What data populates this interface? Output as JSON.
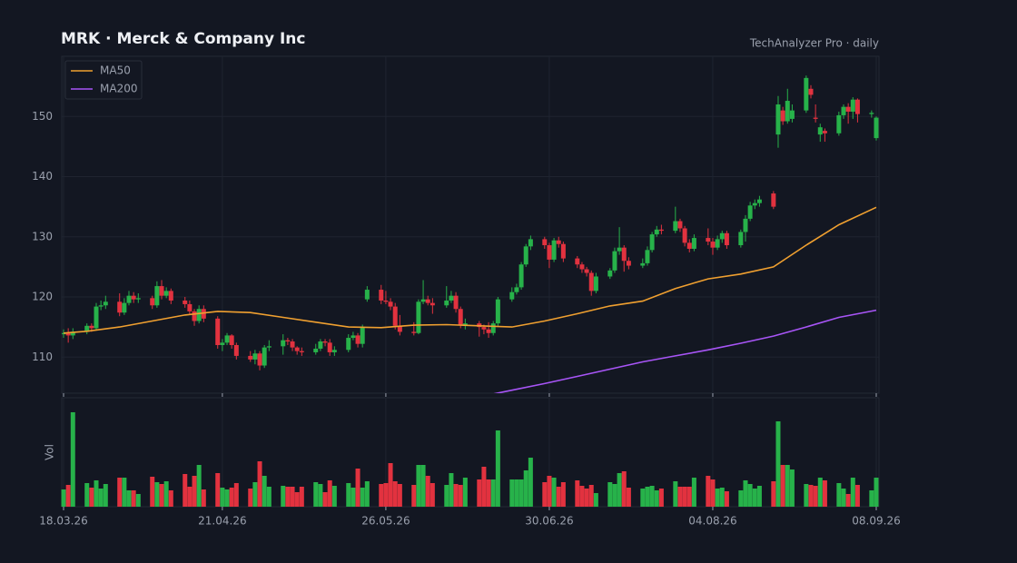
{
  "chart_data": {
    "type": "candlestick",
    "title": "MRK  ·  Merck & Company Inc",
    "subtitle": "TechAnalyzer Pro · daily",
    "volume_label": "Vol",
    "x": [
      "2026-03-18",
      "2026-03-19",
      "2026-03-20",
      "2026-03-23",
      "2026-03-24",
      "2026-03-25",
      "2026-03-26",
      "2026-03-27",
      "2026-03-30",
      "2026-03-31",
      "2026-04-01",
      "2026-04-02",
      "2026-04-03",
      "2026-04-06",
      "2026-04-07",
      "2026-04-08",
      "2026-04-09",
      "2026-04-10",
      "2026-04-13",
      "2026-04-14",
      "2026-04-15",
      "2026-04-16",
      "2026-04-17",
      "2026-04-20",
      "2026-04-21",
      "2026-04-22",
      "2026-04-23",
      "2026-04-24",
      "2026-04-27",
      "2026-04-28",
      "2026-04-29",
      "2026-04-30",
      "2026-05-01",
      "2026-05-04",
      "2026-05-05",
      "2026-05-06",
      "2026-05-07",
      "2026-05-08",
      "2026-05-11",
      "2026-05-12",
      "2026-05-13",
      "2026-05-14",
      "2026-05-15",
      "2026-05-18",
      "2026-05-19",
      "2026-05-20",
      "2026-05-21",
      "2026-05-22",
      "2026-05-25",
      "2026-05-26",
      "2026-05-27",
      "2026-05-28",
      "2026-05-29",
      "2026-06-01",
      "2026-06-02",
      "2026-06-03",
      "2026-06-04",
      "2026-06-05",
      "2026-06-08",
      "2026-06-09",
      "2026-06-10",
      "2026-06-11",
      "2026-06-12",
      "2026-06-15",
      "2026-06-16",
      "2026-06-17",
      "2026-06-18",
      "2026-06-19",
      "2026-06-22",
      "2026-06-23",
      "2026-06-24",
      "2026-06-25",
      "2026-06-26",
      "2026-06-29",
      "2026-06-30",
      "2026-07-01",
      "2026-07-02",
      "2026-07-03",
      "2026-07-06",
      "2026-07-07",
      "2026-07-08",
      "2026-07-09",
      "2026-07-10",
      "2026-07-13",
      "2026-07-14",
      "2026-07-15",
      "2026-07-16",
      "2026-07-17",
      "2026-07-20",
      "2026-07-21",
      "2026-07-22",
      "2026-07-23",
      "2026-07-24",
      "2026-07-27",
      "2026-07-28",
      "2026-07-29",
      "2026-07-30",
      "2026-07-31",
      "2026-08-03",
      "2026-08-04",
      "2026-08-05",
      "2026-08-06",
      "2026-08-07",
      "2026-08-10",
      "2026-08-11",
      "2026-08-12",
      "2026-08-13",
      "2026-08-14",
      "2026-08-17",
      "2026-08-18",
      "2026-08-19",
      "2026-08-20",
      "2026-08-21",
      "2026-08-24",
      "2026-08-25",
      "2026-08-26",
      "2026-08-27",
      "2026-08-28",
      "2026-08-31",
      "2026-09-01",
      "2026-09-02",
      "2026-09-03",
      "2026-09-04",
      "2026-09-07",
      "2026-09-08"
    ],
    "open": [
      113.8,
      114.0,
      113.6,
      114.2,
      115.2,
      114.8,
      118.4,
      118.6,
      119.2,
      117.4,
      119.0,
      120.2,
      119.6,
      119.8,
      118.6,
      121.8,
      120.2,
      121.0,
      119.4,
      118.8,
      117.6,
      116.0,
      118.0,
      116.4,
      112.0,
      112.4,
      113.6,
      112.0,
      110.2,
      109.6,
      110.6,
      108.6,
      111.6,
      111.8,
      112.8,
      112.6,
      111.6,
      111.0,
      110.8,
      111.4,
      112.6,
      112.4,
      110.8,
      111.2,
      113.2,
      113.6,
      112.2,
      119.6,
      121.2,
      119.4,
      119.2,
      118.4,
      115.2,
      114.2,
      114.0,
      119.2,
      119.6,
      119.0,
      118.6,
      119.4,
      120.2,
      118.0,
      115.4,
      115.6,
      115.0,
      114.6,
      114.0,
      115.6,
      119.6,
      120.8,
      121.6,
      125.4,
      128.4,
      129.6,
      128.6,
      126.2,
      129.4,
      128.8,
      126.4,
      125.4,
      124.6,
      124.0,
      121.0,
      123.4,
      124.4,
      127.6,
      128.2,
      126.0,
      125.2,
      125.6,
      127.8,
      130.4,
      131.2,
      131.0,
      132.6,
      131.4,
      129.0,
      128.0,
      129.8,
      129.2,
      128.2,
      129.6,
      130.6,
      128.6,
      130.8,
      133.0,
      135.2,
      135.6,
      137.2,
      147.0,
      151.0,
      149.2,
      149.6,
      151.0,
      154.6,
      149.8,
      147.0,
      147.6,
      147.2,
      150.2,
      151.6,
      150.8,
      152.8,
      150.4,
      146.4
    ],
    "high": [
      114.6,
      114.8,
      114.8,
      115.6,
      115.6,
      119.0,
      119.4,
      120.2,
      120.6,
      119.8,
      121.0,
      120.8,
      120.6,
      120.2,
      122.6,
      122.8,
      121.6,
      121.4,
      120.0,
      119.4,
      118.0,
      118.6,
      118.6,
      116.8,
      113.0,
      114.0,
      113.8,
      112.4,
      111.0,
      111.2,
      111.0,
      112.0,
      112.8,
      113.8,
      113.2,
      113.0,
      111.8,
      111.6,
      112.2,
      113.0,
      113.0,
      113.0,
      111.8,
      113.8,
      114.2,
      114.0,
      115.4,
      121.8,
      122.0,
      121.0,
      119.8,
      119.0,
      117.0,
      115.8,
      119.6,
      122.8,
      120.2,
      119.8,
      121.8,
      121.0,
      120.8,
      118.4,
      116.4,
      116.0,
      115.4,
      115.8,
      116.0,
      120.0,
      121.6,
      122.2,
      125.8,
      128.8,
      130.2,
      130.0,
      129.0,
      129.8,
      130.0,
      129.2,
      126.8,
      125.8,
      125.0,
      124.4,
      124.0,
      124.8,
      128.2,
      131.6,
      128.6,
      126.6,
      126.4,
      128.4,
      130.8,
      131.8,
      132.0,
      135.0,
      133.0,
      131.8,
      129.6,
      130.4,
      131.4,
      129.8,
      130.2,
      131.0,
      131.0,
      131.2,
      133.6,
      135.8,
      136.2,
      136.8,
      137.6,
      153.4,
      151.6,
      154.6,
      152.0,
      156.8,
      155.2,
      152.0,
      148.8,
      148.0,
      150.8,
      152.0,
      152.2,
      153.2,
      153.0,
      151.0,
      150.0
    ],
    "low": [
      113.2,
      112.4,
      113.0,
      113.8,
      114.2,
      114.4,
      117.8,
      118.0,
      116.8,
      117.0,
      118.6,
      119.0,
      119.0,
      118.0,
      118.2,
      119.6,
      119.8,
      118.8,
      118.2,
      117.0,
      115.2,
      115.6,
      115.8,
      111.4,
      111.0,
      112.0,
      111.4,
      109.6,
      109.2,
      108.8,
      107.8,
      108.2,
      111.0,
      110.4,
      112.0,
      111.0,
      110.4,
      110.2,
      110.4,
      111.0,
      111.8,
      110.2,
      110.2,
      110.8,
      112.8,
      111.6,
      111.6,
      119.2,
      118.8,
      118.8,
      117.8,
      114.6,
      113.6,
      113.6,
      113.8,
      118.8,
      118.6,
      117.2,
      118.2,
      119.0,
      117.4,
      114.8,
      114.6,
      113.4,
      113.8,
      113.2,
      113.6,
      115.2,
      119.2,
      120.4,
      121.2,
      125.0,
      127.8,
      128.0,
      124.8,
      125.8,
      128.2,
      125.8,
      124.8,
      124.0,
      123.4,
      120.2,
      120.6,
      123.0,
      124.0,
      127.0,
      124.2,
      124.6,
      124.8,
      125.2,
      127.4,
      130.0,
      130.4,
      130.6,
      130.8,
      128.4,
      127.4,
      127.6,
      128.6,
      127.0,
      127.8,
      129.0,
      128.0,
      128.2,
      129.2,
      132.6,
      134.6,
      135.0,
      134.6,
      144.8,
      148.6,
      148.8,
      149.0,
      150.6,
      153.0,
      149.0,
      145.8,
      145.8,
      146.8,
      149.6,
      148.8,
      149.6,
      149.0,
      149.8,
      146.0
    ],
    "close": [
      114.0,
      113.6,
      114.2,
      115.2,
      114.8,
      118.4,
      118.6,
      119.2,
      117.4,
      119.0,
      120.2,
      119.6,
      119.8,
      118.6,
      121.8,
      120.2,
      121.0,
      119.4,
      118.8,
      117.6,
      116.0,
      118.0,
      116.4,
      112.0,
      112.4,
      113.6,
      112.0,
      110.2,
      109.6,
      110.6,
      108.6,
      111.6,
      111.8,
      112.8,
      112.6,
      111.6,
      111.0,
      110.8,
      111.4,
      112.6,
      112.4,
      110.8,
      111.2,
      113.2,
      113.6,
      112.2,
      115.0,
      121.2,
      119.4,
      119.2,
      118.4,
      115.2,
      114.2,
      114.0,
      119.2,
      119.6,
      119.0,
      118.6,
      119.4,
      120.2,
      118.0,
      115.4,
      115.6,
      115.0,
      114.6,
      114.0,
      115.6,
      119.6,
      120.8,
      121.6,
      125.4,
      128.4,
      129.6,
      128.6,
      126.2,
      129.4,
      128.8,
      126.4,
      125.4,
      124.6,
      124.0,
      121.0,
      123.4,
      124.4,
      127.6,
      128.2,
      126.0,
      125.2,
      125.6,
      127.8,
      130.4,
      131.2,
      131.0,
      132.6,
      131.4,
      129.0,
      128.0,
      129.8,
      129.2,
      128.2,
      129.6,
      130.6,
      128.6,
      130.8,
      133.0,
      135.2,
      135.6,
      136.2,
      135.0,
      152.0,
      149.2,
      152.6,
      151.0,
      156.4,
      153.6,
      149.6,
      148.2,
      147.2,
      150.2,
      151.6,
      150.8,
      152.8,
      150.4,
      150.6,
      149.8
    ],
    "volume": [
      1.9,
      2.4,
      10.4,
      2.6,
      2.1,
      2.9,
      2.0,
      2.5,
      3.2,
      3.2,
      1.8,
      1.8,
      1.4,
      3.3,
      2.7,
      2.5,
      2.8,
      1.8,
      3.6,
      2.2,
      3.4,
      4.6,
      1.9,
      3.7,
      2.1,
      1.9,
      2.1,
      2.6,
      2.0,
      2.7,
      5.0,
      3.4,
      2.2,
      2.3,
      2.2,
      2.2,
      1.6,
      2.2,
      2.7,
      2.5,
      1.6,
      2.9,
      2.3,
      2.6,
      2.1,
      4.2,
      2.1,
      2.8,
      2.5,
      2.6,
      4.8,
      2.8,
      2.5,
      2.4,
      4.6,
      4.6,
      3.4,
      2.6,
      2.4,
      3.7,
      2.5,
      2.4,
      3.2,
      3.0,
      4.4,
      3.0,
      3.0,
      8.4,
      3.0,
      3.0,
      3.0,
      4.0,
      5.4,
      2.7,
      3.4,
      3.2,
      2.2,
      2.7,
      2.9,
      2.3,
      2.0,
      2.4,
      1.5,
      2.7,
      2.5,
      3.7,
      3.9,
      2.1,
      2.0,
      2.2,
      2.3,
      1.8,
      2.0,
      2.8,
      2.2,
      2.2,
      2.2,
      3.2,
      3.4,
      3.0,
      2.0,
      2.1,
      1.7,
      1.8,
      2.9,
      2.5,
      2.0,
      2.3,
      2.8,
      9.4,
      4.6,
      4.6,
      4.1,
      2.5,
      2.4,
      2.3,
      3.2,
      2.9,
      2.6,
      2.0,
      1.4,
      3.2,
      2.4,
      1.8,
      3.2
    ],
    "series": [
      {
        "name": "MA50",
        "color": "#f0a030",
        "x": [
          "2026-03-18",
          "2026-03-23",
          "2026-03-30",
          "2026-04-06",
          "2026-04-13",
          "2026-04-20",
          "2026-04-27",
          "2026-05-04",
          "2026-05-11",
          "2026-05-18",
          "2026-05-25",
          "2026-06-01",
          "2026-06-08",
          "2026-06-15",
          "2026-06-22",
          "2026-06-29",
          "2026-07-06",
          "2026-07-13",
          "2026-07-20",
          "2026-07-27",
          "2026-08-03",
          "2026-08-10",
          "2026-08-17",
          "2026-08-24",
          "2026-08-31",
          "2026-09-08"
        ],
        "values": [
          114.0,
          114.3,
          115.0,
          116.0,
          117.0,
          117.6,
          117.4,
          116.6,
          115.8,
          115.0,
          114.9,
          115.3,
          115.4,
          115.2,
          115.0,
          116.0,
          117.2,
          118.5,
          119.3,
          121.4,
          123.0,
          123.8,
          125.0,
          128.6,
          132.0,
          134.9
        ]
      },
      {
        "name": "MA200",
        "color": "#a855f7",
        "x": [
          "2026-06-15",
          "2026-06-22",
          "2026-06-29",
          "2026-07-06",
          "2026-07-13",
          "2026-07-20",
          "2026-07-27",
          "2026-08-03",
          "2026-08-10",
          "2026-08-17",
          "2026-08-24",
          "2026-08-31",
          "2026-09-08"
        ],
        "values": [
          103.4,
          104.5,
          105.6,
          106.8,
          108.0,
          109.2,
          110.2,
          111.2,
          112.3,
          113.5,
          115.0,
          116.6,
          117.8
        ]
      }
    ],
    "up_color": "#27b24a",
    "down_color": "#e2323f",
    "xlim": [
      "2026-03-18",
      "2026-09-08"
    ],
    "xticks": [
      {
        "value": "2026-03-18",
        "label": "18.03.26"
      },
      {
        "value": "2026-04-21",
        "label": "21.04.26"
      },
      {
        "value": "2026-05-26",
        "label": "26.05.26"
      },
      {
        "value": "2026-06-30",
        "label": "30.06.26"
      },
      {
        "value": "2026-08-04",
        "label": "04.08.26"
      },
      {
        "value": "2026-09-08",
        "label": "08.09.26"
      }
    ],
    "ylim": [
      104,
      160
    ],
    "yticks": [
      110,
      120,
      130,
      140,
      150
    ],
    "vlim": [
      0,
      12
    ],
    "grid": true,
    "legend": "upper left"
  }
}
